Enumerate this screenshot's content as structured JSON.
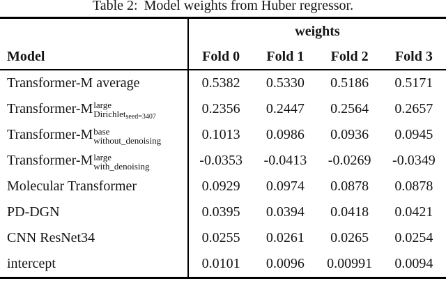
{
  "caption": {
    "label": "Table 2:",
    "text": "Model weights from Huber regressor."
  },
  "table": {
    "group_header": "weights",
    "columns": [
      "Model",
      "Fold 0",
      "Fold 1",
      "Fold 2",
      "Fold 3"
    ],
    "rows": [
      {
        "name": "Transformer-M average",
        "values": [
          "0.5382",
          "0.5330",
          "0.5186",
          "0.5171"
        ]
      },
      {
        "name": "Transformer-M",
        "sup": "large",
        "sub": "Dirichlet",
        "subsub": "seed=3407",
        "values": [
          "0.2356",
          "0.2447",
          "0.2564",
          "0.2657"
        ]
      },
      {
        "name": "Transformer-M",
        "sup": "base",
        "sub": "without_denoising",
        "values": [
          "0.1013",
          "0.0986",
          "0.0936",
          "0.0945"
        ]
      },
      {
        "name": "Transformer-M",
        "sup": "large",
        "sub": "with_denoising",
        "values": [
          "-0.0353",
          "-0.0413",
          "-0.0269",
          "-0.0349"
        ]
      },
      {
        "name": "Molecular Transformer",
        "values": [
          "0.0929",
          "0.0974",
          "0.0878",
          "0.0878"
        ]
      },
      {
        "name": "PD-DGN",
        "values": [
          "0.0395",
          "0.0394",
          "0.0418",
          "0.0421"
        ]
      },
      {
        "name": "CNN ResNet34",
        "values": [
          "0.0255",
          "0.0261",
          "0.0265",
          "0.0254"
        ]
      },
      {
        "name": "intercept",
        "values": [
          "0.0101",
          "0.0096",
          "0.00991",
          "0.0094"
        ]
      }
    ],
    "colors": {
      "text": "#141414",
      "background": "#ffffff",
      "rule": "#000000"
    }
  }
}
